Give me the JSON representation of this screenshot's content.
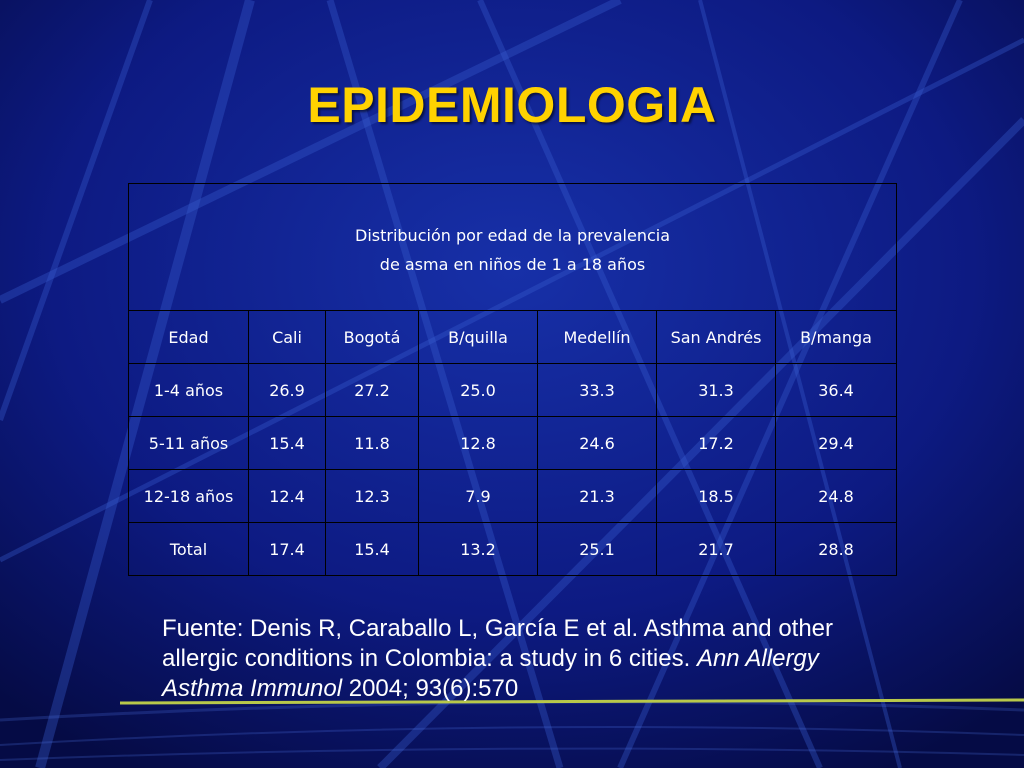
{
  "slide": {
    "title": "EPIDEMIOLOGIA",
    "accent_color": "#ffd200",
    "background_color": "#0a1470"
  },
  "table": {
    "caption_line1": "Distribución por edad de la prevalencia",
    "caption_line2": "de asma en niños de 1 a  18 años",
    "headers": [
      "Edad",
      "Cali",
      "Bogotá",
      "B/quilla",
      "Medellín",
      "San Andrés",
      "B/manga"
    ],
    "rows": [
      [
        "1-4 años",
        "26.9",
        "27.2",
        "25.0",
        "33.3",
        "31.3",
        "36.4"
      ],
      [
        "5-11 años",
        "15.4",
        "11.8",
        "12.8",
        "24.6",
        "17.2",
        "29.4"
      ],
      [
        "12-18 años",
        "12.4",
        "12.3",
        "7.9",
        "21.3",
        "18.5",
        "24.8"
      ],
      [
        "Total",
        "17.4",
        "15.4",
        "13.2",
        "25.1",
        "21.7",
        "28.8"
      ]
    ]
  },
  "source": {
    "text_plain": "Fuente: Denis R, Caraballo L, García E et al. Asthma and other allergic conditions in Colombia: a study in 6 cities.",
    "journal_italic": "Ann Allergy Asthma Immunol",
    "citation_tail": " 2004; 93(6):570"
  }
}
